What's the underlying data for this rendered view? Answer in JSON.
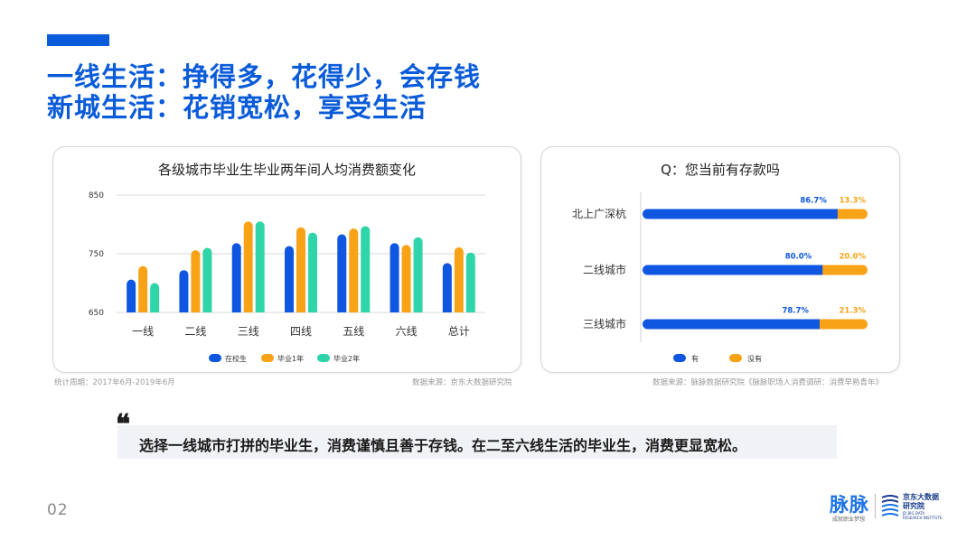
{
  "headline": {
    "line1": "一线生活：挣得多，花得少，会存钱",
    "line2": "新城生活：花销宽松，享受生活"
  },
  "colors": {
    "accent_blue": "#0a5bd9",
    "series_blue": "#0f57e0",
    "series_orange": "#f8a317",
    "series_teal": "#2fd5a8"
  },
  "chart_data": [
    {
      "type": "bar",
      "title": "各级城市毕业生毕业两年间人均消费额变化",
      "categories": [
        "一线",
        "二线",
        "三线",
        "四线",
        "五线",
        "六线",
        "总计"
      ],
      "y_ticks": [
        "650",
        "750",
        "850"
      ],
      "ylim": [
        650,
        850
      ],
      "grid": true,
      "legend_position": "bottom",
      "series": [
        {
          "name": "在校生",
          "color": "#0f57e0",
          "values": [
            706,
            722,
            768,
            763,
            783,
            768,
            734
          ]
        },
        {
          "name": "毕业1年",
          "color": "#f8a317",
          "values": [
            729,
            756,
            805,
            795,
            793,
            765,
            761
          ]
        },
        {
          "name": "毕业2年",
          "color": "#2fd5a8",
          "values": [
            700,
            760,
            805,
            786,
            797,
            778,
            752
          ]
        }
      ]
    },
    {
      "type": "bar",
      "orientation": "horizontal",
      "stacked": true,
      "title": "Q：您当前有存款吗",
      "categories": [
        "北上广深杭",
        "二线城市",
        "三线城市"
      ],
      "xlim": [
        0,
        100
      ],
      "legend_position": "bottom",
      "series": [
        {
          "name": "有",
          "color": "#0f57e0",
          "values": [
            86.7,
            80.0,
            78.7
          ],
          "labels": [
            "86.7%",
            "80.0%",
            "78.7%"
          ]
        },
        {
          "name": "没有",
          "color": "#f8a317",
          "values": [
            13.3,
            20.0,
            21.3
          ],
          "labels": [
            "13.3%",
            "20.0%",
            "21.3%"
          ]
        }
      ]
    }
  ],
  "notes": {
    "left_period": "统计周期：2017年6月-2019年6月",
    "left_source": "数据来源：京东大数据研究院",
    "right_source": "数据来源：脉脉数据研究院《脉脉职场人消费调研：消费早熟青年》"
  },
  "quote": {
    "mark": "❝",
    "text": "选择一线城市打拼的毕业生，消费谨慎且善于存钱。在二至六线生活的毕业生，消费更显宽松。"
  },
  "page_number": "02",
  "brand": {
    "maimai_name": "脉脉",
    "maimai_tagline": "成就职业梦想",
    "jd_name": "京东大数据研究院",
    "jd_name_en": "JD BIG DATA RESEARCH INSTITUTE"
  }
}
